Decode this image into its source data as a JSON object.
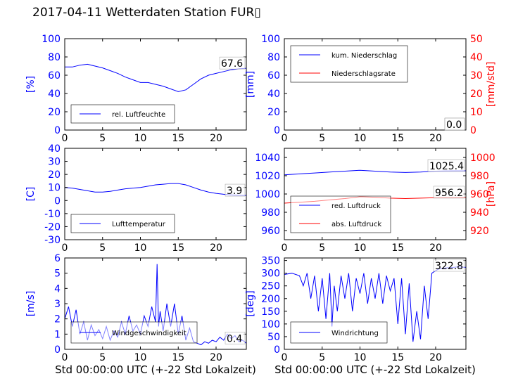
{
  "title": "2017-04-11 Wetterdaten Station FUR▯",
  "xlabel": "Std 00:00:00 UTC (+-22 Std Lokalzeit)",
  "chart_data": [
    {
      "id": "humidity",
      "type": "line",
      "xlim": [
        0,
        24
      ],
      "xticks": [
        0,
        5,
        10,
        15,
        20
      ],
      "ylim": [
        0,
        100
      ],
      "yticks": [
        0,
        20,
        40,
        60,
        80,
        100
      ],
      "ylabel": "[%]",
      "ylabel_color": "#0000ff",
      "legend": "lower-left",
      "series": [
        {
          "name": "rel. Luftfeuchte",
          "color": "#0000ff",
          "x": [
            0,
            1,
            2,
            3,
            4,
            5,
            6,
            7,
            8,
            9,
            10,
            11,
            12,
            13,
            14,
            15,
            16,
            17,
            18,
            19,
            20,
            21,
            22,
            23,
            24
          ],
          "y": [
            69,
            69,
            71,
            72,
            70,
            68,
            65,
            62,
            58,
            55,
            52,
            52,
            50,
            48,
            45,
            42,
            44,
            50,
            56,
            60,
            62,
            64,
            66,
            67,
            67.6
          ]
        }
      ],
      "last_value_label": "67.6"
    },
    {
      "id": "precip",
      "type": "line",
      "xlim": [
        0,
        24
      ],
      "xticks": [
        0,
        5,
        10,
        15,
        20
      ],
      "ylim": [
        0,
        100
      ],
      "yticks": [
        0,
        20,
        40,
        60,
        80,
        100
      ],
      "ylabel": "[mm]",
      "ylabel_color": "#0000ff",
      "ylim2": [
        0,
        50
      ],
      "yticks2": [
        0,
        10,
        20,
        30,
        40,
        50
      ],
      "ylabel2": "[mm/std]",
      "ylabel2_color": "#ff0000",
      "legend": "top-left",
      "series": [
        {
          "name": "kum. Niederschlag",
          "color": "#0000ff",
          "axis": "left",
          "x": [
            0,
            24
          ],
          "y": [
            0,
            0
          ]
        },
        {
          "name": "Niederschlagsrate",
          "color": "#ff0000",
          "axis": "right",
          "x": [
            0,
            24
          ],
          "y": [
            0,
            0
          ]
        }
      ],
      "last_value_label": "0.0",
      "last_value_label2": "0.0"
    },
    {
      "id": "temperature",
      "type": "line",
      "xlim": [
        0,
        24
      ],
      "xticks": [
        0,
        5,
        10,
        15,
        20
      ],
      "ylim": [
        -30,
        40
      ],
      "yticks": [
        -30,
        -20,
        -10,
        0,
        10,
        20,
        30,
        40
      ],
      "ylabel": "[C]",
      "ylabel_color": "#0000ff",
      "legend": "lower-left",
      "series": [
        {
          "name": "Lufttemperatur",
          "color": "#0000ff",
          "x": [
            0,
            1,
            2,
            3,
            4,
            5,
            6,
            7,
            8,
            9,
            10,
            11,
            12,
            13,
            14,
            15,
            16,
            17,
            18,
            19,
            20,
            21,
            22,
            23,
            24
          ],
          "y": [
            10,
            9.5,
            8.5,
            7.5,
            6.5,
            6.5,
            7,
            8,
            9,
            9.5,
            10,
            11,
            12,
            12.5,
            13,
            13,
            12,
            10,
            8,
            6.5,
            5.5,
            4.8,
            4.3,
            4,
            3.9
          ]
        }
      ],
      "last_value_label": "3.9"
    },
    {
      "id": "pressure",
      "type": "line",
      "xlim": [
        0,
        24
      ],
      "xticks": [
        0,
        5,
        10,
        15,
        20
      ],
      "ylim": [
        950,
        1050
      ],
      "yticks": [
        960,
        980,
        1000,
        1020,
        1040
      ],
      "ylabel": "",
      "ylim2": [
        910,
        1010
      ],
      "yticks2": [
        920,
        940,
        960,
        980,
        1000
      ],
      "ylabel2": "[hPa]",
      "ylabel2_color": "#ff0000",
      "legend": "lower-left",
      "series": [
        {
          "name": "red. Luftdruck",
          "color": "#0000ff",
          "axis": "left",
          "x": [
            0,
            2,
            4,
            6,
            8,
            10,
            12,
            14,
            16,
            18,
            20,
            22,
            24
          ],
          "y": [
            1021,
            1022,
            1023,
            1024,
            1025,
            1026,
            1025,
            1024,
            1023.5,
            1024,
            1025,
            1025.3,
            1025.4
          ]
        },
        {
          "name": "abs. Luftdruck",
          "color": "#ff0000",
          "axis": "right",
          "x": [
            0,
            2,
            4,
            6,
            8,
            10,
            12,
            14,
            16,
            18,
            20,
            22,
            24
          ],
          "y": [
            950,
            951,
            952,
            953.5,
            955,
            957,
            956.5,
            955.5,
            955,
            955.5,
            956,
            956.1,
            956.2
          ]
        }
      ],
      "last_value_label": "1025.4",
      "last_value_label2": "956.2"
    },
    {
      "id": "windspeed",
      "type": "line",
      "xlim": [
        0,
        24
      ],
      "xticks": [
        0,
        5,
        10,
        15,
        20
      ],
      "ylim": [
        0,
        6
      ],
      "yticks": [
        0,
        1,
        2,
        3,
        4,
        5,
        6
      ],
      "ylabel": "[m/s]",
      "ylabel_color": "#0000ff",
      "legend": "lower-center",
      "series": [
        {
          "name": "Windgeschwindigkeit",
          "color": "#0000ff",
          "x": [
            0,
            0.5,
            1,
            1.5,
            2,
            2.5,
            3,
            3.5,
            4,
            4.5,
            5,
            5.5,
            6,
            6.5,
            7,
            7.5,
            8,
            8.5,
            9,
            9.5,
            10,
            10.5,
            11,
            11.5,
            12,
            12.2,
            12.4,
            12.6,
            13,
            13.5,
            14,
            14.5,
            15,
            15.5,
            16,
            16.5,
            17,
            17.5,
            18,
            18.5,
            19,
            19.5,
            20,
            20.5,
            21,
            21.5,
            22,
            22.5,
            23,
            23.5,
            24
          ],
          "y": [
            2.0,
            2.8,
            1.5,
            2.6,
            1.0,
            1.8,
            0.6,
            1.6,
            0.9,
            1.3,
            0.7,
            1.5,
            0.6,
            1.2,
            0.8,
            1.8,
            1.0,
            2.2,
            1.2,
            1.6,
            1.0,
            2.2,
            1.5,
            2.8,
            1.8,
            5.6,
            1.5,
            2.5,
            1.2,
            3.0,
            1.5,
            3.0,
            1.0,
            2.2,
            0.6,
            1.4,
            0.5,
            0.4,
            0.3,
            0.5,
            0.4,
            0.6,
            0.5,
            0.8,
            0.6,
            1.0,
            0.7,
            0.9,
            0.5,
            0.6,
            0.4
          ]
        }
      ],
      "last_value_label": "0.4"
    },
    {
      "id": "winddir",
      "type": "line",
      "xlim": [
        0,
        24
      ],
      "xticks": [
        0,
        5,
        10,
        15,
        20
      ],
      "ylim": [
        0,
        360
      ],
      "yticks": [
        0,
        50,
        100,
        150,
        200,
        250,
        300,
        350
      ],
      "ylabel": "[deg]",
      "ylabel_color": "#0000ff",
      "legend": "lower-left",
      "series": [
        {
          "name": "Windrichtung",
          "color": "#0000ff",
          "x": [
            0,
            1,
            2,
            2.5,
            3,
            3.5,
            4,
            4.5,
            5,
            5.5,
            6,
            6.3,
            6.6,
            7,
            7.5,
            8,
            8.5,
            9,
            9.5,
            10,
            10.5,
            11,
            11.5,
            12,
            12.5,
            13,
            13.5,
            14,
            14.5,
            15,
            15.5,
            16,
            16.5,
            17,
            17.5,
            18,
            18.5,
            19,
            19.5,
            20,
            20.5,
            21,
            22,
            23,
            24
          ],
          "y": [
            295,
            300,
            290,
            250,
            300,
            200,
            290,
            150,
            280,
            120,
            300,
            90,
            250,
            150,
            290,
            200,
            300,
            150,
            280,
            220,
            300,
            180,
            280,
            200,
            300,
            180,
            290,
            230,
            280,
            100,
            280,
            60,
            260,
            30,
            150,
            40,
            250,
            120,
            300,
            310,
            318,
            320,
            322,
            325,
            322.8
          ]
        }
      ],
      "last_value_label": "322.8"
    }
  ]
}
